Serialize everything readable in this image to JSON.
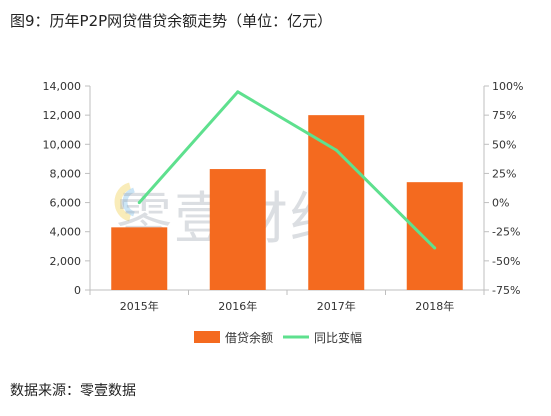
{
  "figure_title": "图9：历年P2P网贷借贷余额走势（单位：亿元）",
  "source_text": "数据来源：零壹数据",
  "watermark_text": "零壹财经",
  "colors": {
    "bar": "#f46a1f",
    "line": "#5ee08e",
    "axis": "#bfbfbf",
    "text": "#333333"
  },
  "chart_data": {
    "type": "bar",
    "categories": [
      "2015年",
      "2016年",
      "2017年",
      "2018年"
    ],
    "series": [
      {
        "name": "借贷余额",
        "type": "bar",
        "axis": "left",
        "values": [
          4300,
          8300,
          12000,
          7400
        ]
      },
      {
        "name": "同比变幅",
        "type": "line",
        "axis": "right",
        "values": [
          0,
          95,
          45,
          -39
        ]
      }
    ],
    "y_left": {
      "min": 0,
      "max": 14000,
      "ticks": [
        "0",
        "2,000",
        "4,000",
        "6,000",
        "8,000",
        "10,000",
        "12,000",
        "14,000"
      ]
    },
    "y_right": {
      "min": -75,
      "max": 100,
      "ticks": [
        "-75%",
        "-50%",
        "-25%",
        "0%",
        "25%",
        "50%",
        "75%",
        "100%"
      ]
    },
    "legend_position": "bottom",
    "grid": false
  }
}
